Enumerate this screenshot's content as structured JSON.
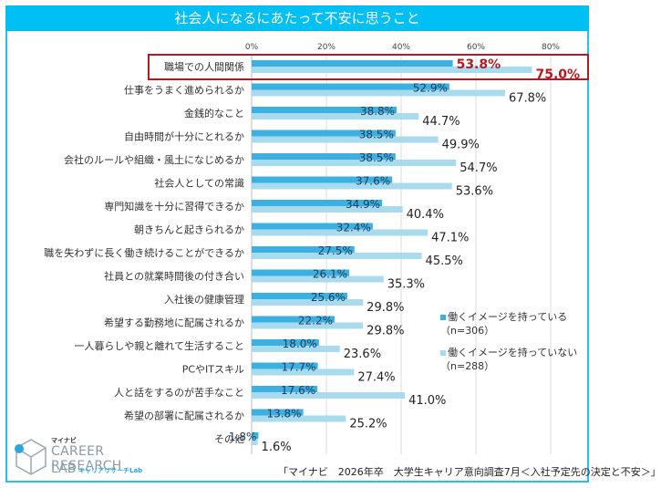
{
  "header": {
    "title": "社会人になるにあたって不安に思うこと"
  },
  "colors": {
    "header_bg": "#00bff3",
    "series1": "#3cb1e1",
    "series2": "#a9dbee",
    "highlight": "#b01c22",
    "frame": "#29c0e8"
  },
  "legend": [
    {
      "line1": "働くイメージを持っている",
      "line2": "（n=306）"
    },
    {
      "line1": "働くイメージを持っていない",
      "line2": "（n=288）"
    }
  ],
  "source": "「マイナビ　2026年卒　大学生キャリア意向調査7月＜入社予定先の決定と不安＞」",
  "logo": {
    "small": "マイナビ",
    "main": "CAREER RESEARCH",
    "lab": "LAB",
    "sub": "キャリアリサーチLab"
  },
  "chart_data": {
    "type": "bar",
    "orientation": "horizontal",
    "title": "社会人になるにあたって不安に思うこと",
    "xlabel": "",
    "ylabel": "",
    "xlim": [
      0,
      80
    ],
    "ticks": [
      "0%",
      "20%",
      "40%",
      "60%",
      "80%"
    ],
    "tick_values": [
      0,
      20,
      40,
      60,
      80
    ],
    "grid": true,
    "legend_position": "right",
    "highlighted_category": "職場での人間関係",
    "categories": [
      "職場での人間関係",
      "仕事をうまく進められるか",
      "金銭的なこと",
      "自由時間が十分にとれるか",
      "会社のルールや組織・風土になじめるか",
      "社会人としての常識",
      "専門知識を十分に習得できるか",
      "朝きちんと起きられるか",
      "職を失わずに長く働き続けることができるか",
      "社員との就業時間後の付き合い",
      "入社後の健康管理",
      "希望する勤務地に配属されるか",
      "一人暮らしや親と離れて生活すること",
      "PCやITスキル",
      "人と話をするのが苦手なこと",
      "希望の部署に配属されるか",
      "その他"
    ],
    "series": [
      {
        "name": "働くイメージを持っている（n=306）",
        "values": [
          53.8,
          52.9,
          38.8,
          38.5,
          38.5,
          37.6,
          34.9,
          32.4,
          27.5,
          26.1,
          25.6,
          22.2,
          18.0,
          17.7,
          17.6,
          13.8,
          1.8
        ],
        "labels": [
          "53.8%",
          "52.9%",
          "38.8%",
          "38.5%",
          "38.5%",
          "37.6%",
          "34.9%",
          "32.4%",
          "27.5%",
          "26.1%",
          "25.6%",
          "22.2%",
          "18.0%",
          "17.7%",
          "17.6%",
          "13.8%",
          "1.8%"
        ]
      },
      {
        "name": "働くイメージを持っていない（n=288）",
        "values": [
          75.0,
          67.8,
          44.7,
          49.9,
          54.7,
          53.6,
          40.4,
          47.1,
          45.5,
          35.3,
          29.8,
          29.8,
          23.6,
          27.4,
          41.0,
          25.2,
          1.6
        ],
        "labels": [
          "75.0%",
          "67.8%",
          "44.7%",
          "49.9%",
          "54.7%",
          "53.6%",
          "40.4%",
          "47.1%",
          "45.5%",
          "35.3%",
          "29.8%",
          "29.8%",
          "23.6%",
          "27.4%",
          "41.0%",
          "25.2%",
          "1.6%"
        ]
      }
    ]
  }
}
